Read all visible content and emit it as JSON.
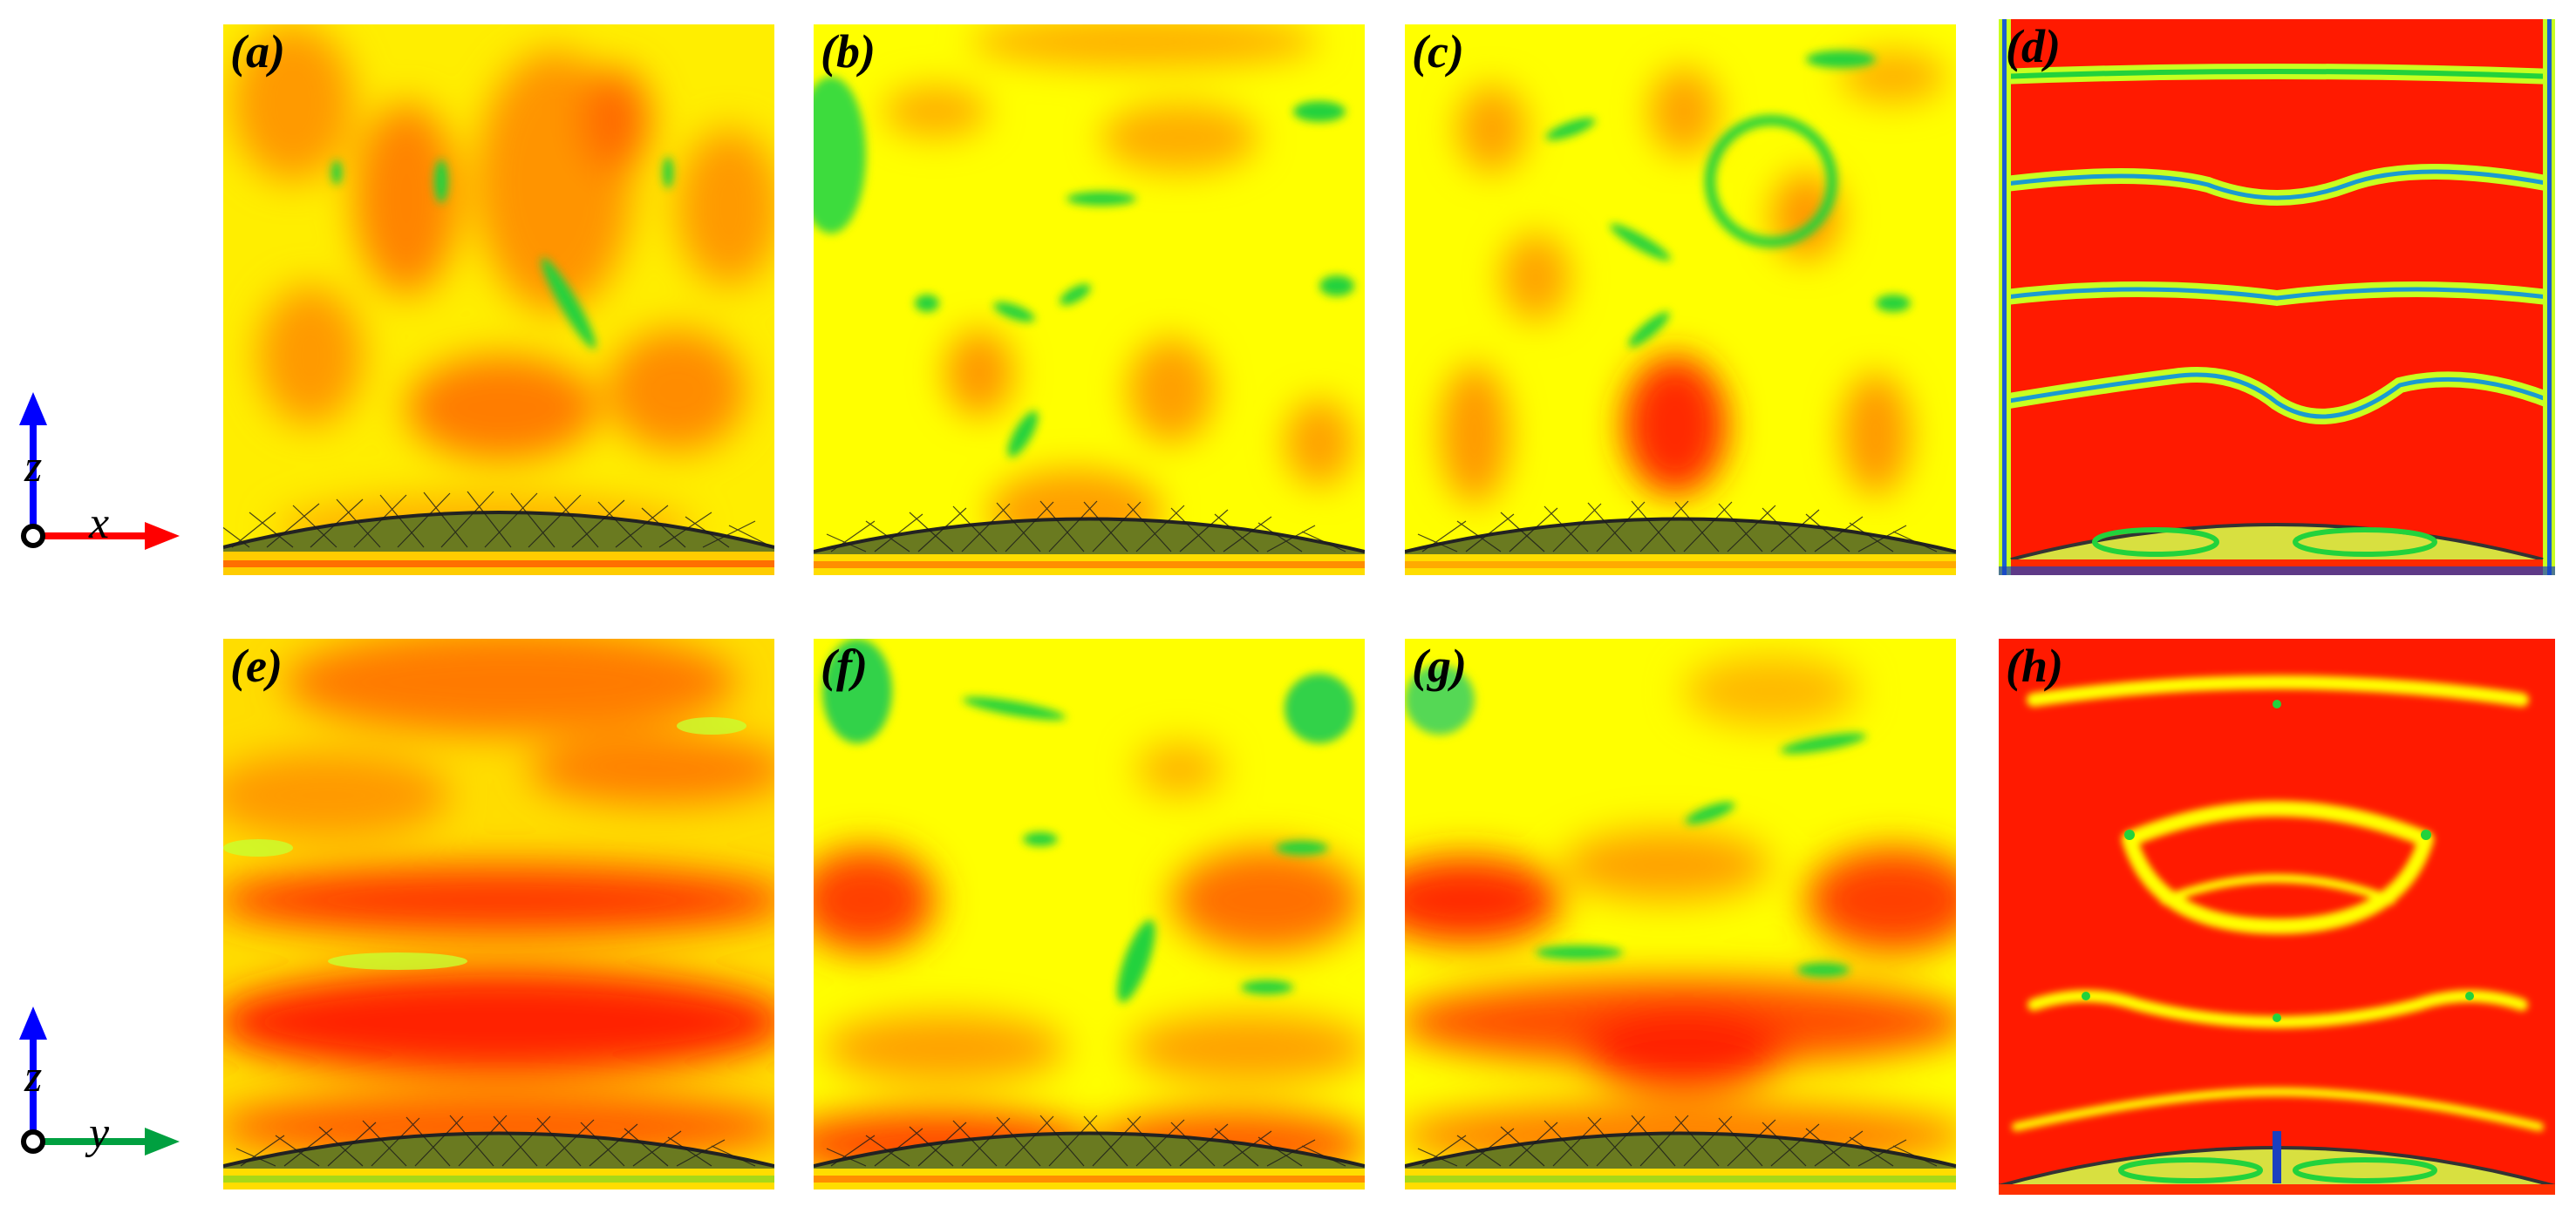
{
  "panels": [
    {
      "id": "a",
      "label": "(a)"
    },
    {
      "id": "b",
      "label": "(b)"
    },
    {
      "id": "c",
      "label": "(c)"
    },
    {
      "id": "d",
      "label": "(d)"
    },
    {
      "id": "e",
      "label": "(e)"
    },
    {
      "id": "f",
      "label": "(f)"
    },
    {
      "id": "g",
      "label": "(g)"
    },
    {
      "id": "h",
      "label": "(h)"
    }
  ],
  "axes_top": {
    "vertical": "z",
    "horizontal": "x"
  },
  "axes_bottom": {
    "vertical": "z",
    "horizontal": "y"
  },
  "colors": {
    "field_low": "#00d22a",
    "field_mid": "#ffff00",
    "field_warm": "#ff9a00",
    "field_high": "#ff1a00",
    "axis_z": "#0000ff",
    "axis_x": "#ff0000",
    "axis_y": "#00a040"
  }
}
